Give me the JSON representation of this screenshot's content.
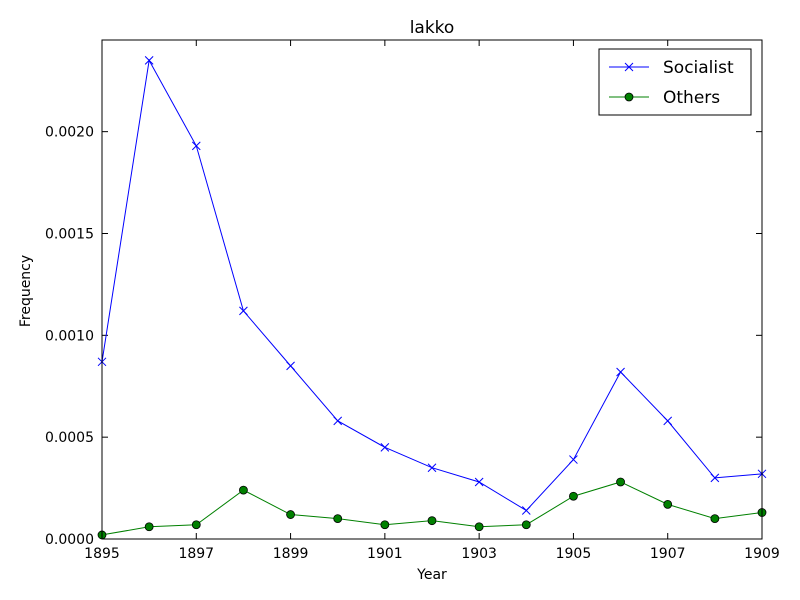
{
  "chart_data": {
    "type": "line",
    "title": "lakko",
    "xlabel": "Year",
    "ylabel": "Frequency",
    "x": [
      1895,
      1896,
      1897,
      1898,
      1899,
      1900,
      1901,
      1902,
      1903,
      1904,
      1905,
      1906,
      1907,
      1908,
      1909
    ],
    "xlim": [
      1895,
      1909
    ],
    "ylim": [
      0,
      0.00245
    ],
    "xticks": [
      1895,
      1897,
      1899,
      1901,
      1903,
      1905,
      1907,
      1909
    ],
    "xtick_labels": [
      "1895",
      "1897",
      "1899",
      "1901",
      "1903",
      "1905",
      "1907",
      "1909"
    ],
    "yticks": [
      0,
      0.0005,
      0.001,
      0.0015,
      0.002
    ],
    "ytick_labels": [
      "0.0000",
      "0.0005",
      "0.0010",
      "0.0015",
      "0.0020"
    ],
    "grid": false,
    "legend_position": "top-right",
    "series": [
      {
        "name": "Socialist",
        "color": "#0000ff",
        "marker": "x",
        "values": [
          0.00087,
          0.00235,
          0.00193,
          0.00112,
          0.00085,
          0.00058,
          0.00045,
          0.00035,
          0.00028,
          0.00014,
          0.00039,
          0.00082,
          0.00058,
          0.0003,
          0.00032
        ]
      },
      {
        "name": "Others",
        "color": "#008000",
        "marker": "circle",
        "values": [
          2e-05,
          6e-05,
          7e-05,
          0.00024,
          0.00012,
          0.0001,
          7e-05,
          9e-05,
          6e-05,
          7e-05,
          0.00021,
          0.00028,
          0.00017,
          0.0001,
          0.00013
        ]
      }
    ]
  }
}
